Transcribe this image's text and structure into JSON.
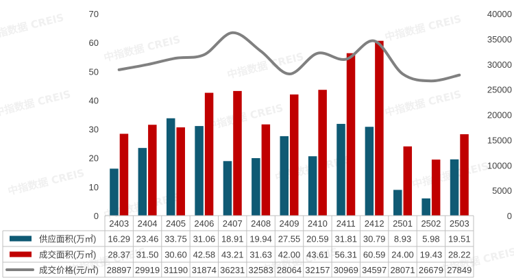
{
  "watermark": "中指数据 CREIS",
  "colors": {
    "supply": "#0F5A74",
    "deal": "#C00000",
    "price": "#808080"
  },
  "chart_data": {
    "type": "bar",
    "categories": [
      "2403",
      "2404",
      "2405",
      "2406",
      "2407",
      "2408",
      "2409",
      "2410",
      "2411",
      "2412",
      "2501",
      "2502",
      "2503"
    ],
    "series": [
      {
        "name": "供应面积(万㎡)",
        "kind": "bar",
        "axis": "left",
        "color": "#0F5A74",
        "values": [
          16.29,
          23.46,
          33.75,
          31.06,
          18.91,
          19.94,
          27.55,
          20.59,
          31.81,
          30.79,
          8.93,
          5.98,
          19.51
        ],
        "labels": [
          "16.29",
          "23.46",
          "33.75",
          "31.06",
          "18.91",
          "19.94",
          "27.55",
          "20.59",
          "31.81",
          "30.79",
          "8.93",
          "5.98",
          "19.51"
        ]
      },
      {
        "name": "成交面积(万㎡)",
        "kind": "bar",
        "axis": "left",
        "color": "#C00000",
        "values": [
          28.37,
          31.5,
          30.6,
          42.58,
          43.21,
          31.63,
          42.0,
          43.61,
          56.31,
          60.59,
          24.0,
          19.43,
          28.22
        ],
        "labels": [
          "28.37",
          "31.50",
          "30.60",
          "42.58",
          "43.21",
          "31.63",
          "42.00",
          "43.61",
          "56.31",
          "60.59",
          "24.00",
          "19.43",
          "28.22"
        ]
      },
      {
        "name": "成交价格(元/㎡)",
        "kind": "line",
        "axis": "right",
        "color": "#808080",
        "values": [
          28897,
          29919,
          31190,
          31874,
          36231,
          32583,
          28064,
          32157,
          30969,
          34597,
          28071,
          26679,
          27849
        ],
        "labels": [
          "28897",
          "29919",
          "31190",
          "31874",
          "36231",
          "32583",
          "28064",
          "32157",
          "30969",
          "34597",
          "28071",
          "26679",
          "27849"
        ]
      }
    ],
    "y_left": {
      "min": 0,
      "max": 70,
      "ticks": [
        "0",
        "10",
        "20",
        "30",
        "40",
        "50",
        "60",
        "70"
      ]
    },
    "y_right": {
      "min": 0,
      "max": 40000,
      "ticks": [
        "0",
        "5000",
        "10000",
        "15000",
        "20000",
        "25000",
        "30000",
        "35000",
        "40000"
      ]
    },
    "grid": false,
    "legend": "data-table"
  }
}
